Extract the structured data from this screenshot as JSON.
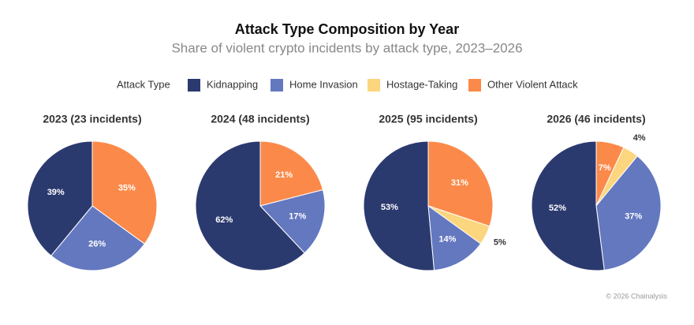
{
  "title": "Attack Type Composition by Year",
  "subtitle": "Share of violent crypto incidents by attack type, 2023–2026",
  "legend": {
    "title": "Attack Type",
    "items": [
      {
        "name": "Kidnapping",
        "color": "#2b3a6e"
      },
      {
        "name": "Home Invasion",
        "color": "#6478c0"
      },
      {
        "name": "Hostage-Taking",
        "color": "#fbd67f"
      },
      {
        "name": "Other Violent Attack",
        "color": "#fb8a4a"
      }
    ]
  },
  "source": "© 2026 Chainalysis",
  "chart_data": [
    {
      "type": "pie",
      "title": "2023 (23 incidents)",
      "values": [
        39,
        26,
        null,
        35
      ],
      "value_labels": [
        "39%",
        "26%",
        null,
        "35%"
      ]
    },
    {
      "type": "pie",
      "title": "2024 (48 incidents)",
      "values": [
        62,
        17,
        null,
        21
      ],
      "value_labels": [
        "62%",
        "17%",
        null,
        "21%"
      ]
    },
    {
      "type": "pie",
      "title": "2025 (95 incidents)",
      "values": [
        53,
        14,
        5,
        31
      ],
      "value_labels": [
        "53%",
        "14%",
        "5%",
        "31%"
      ]
    },
    {
      "type": "pie",
      "title": "2026 (46 incidents)",
      "values": [
        52,
        37,
        4,
        7
      ],
      "value_labels": [
        "52%",
        "37%",
        "4%",
        "7%"
      ]
    }
  ]
}
